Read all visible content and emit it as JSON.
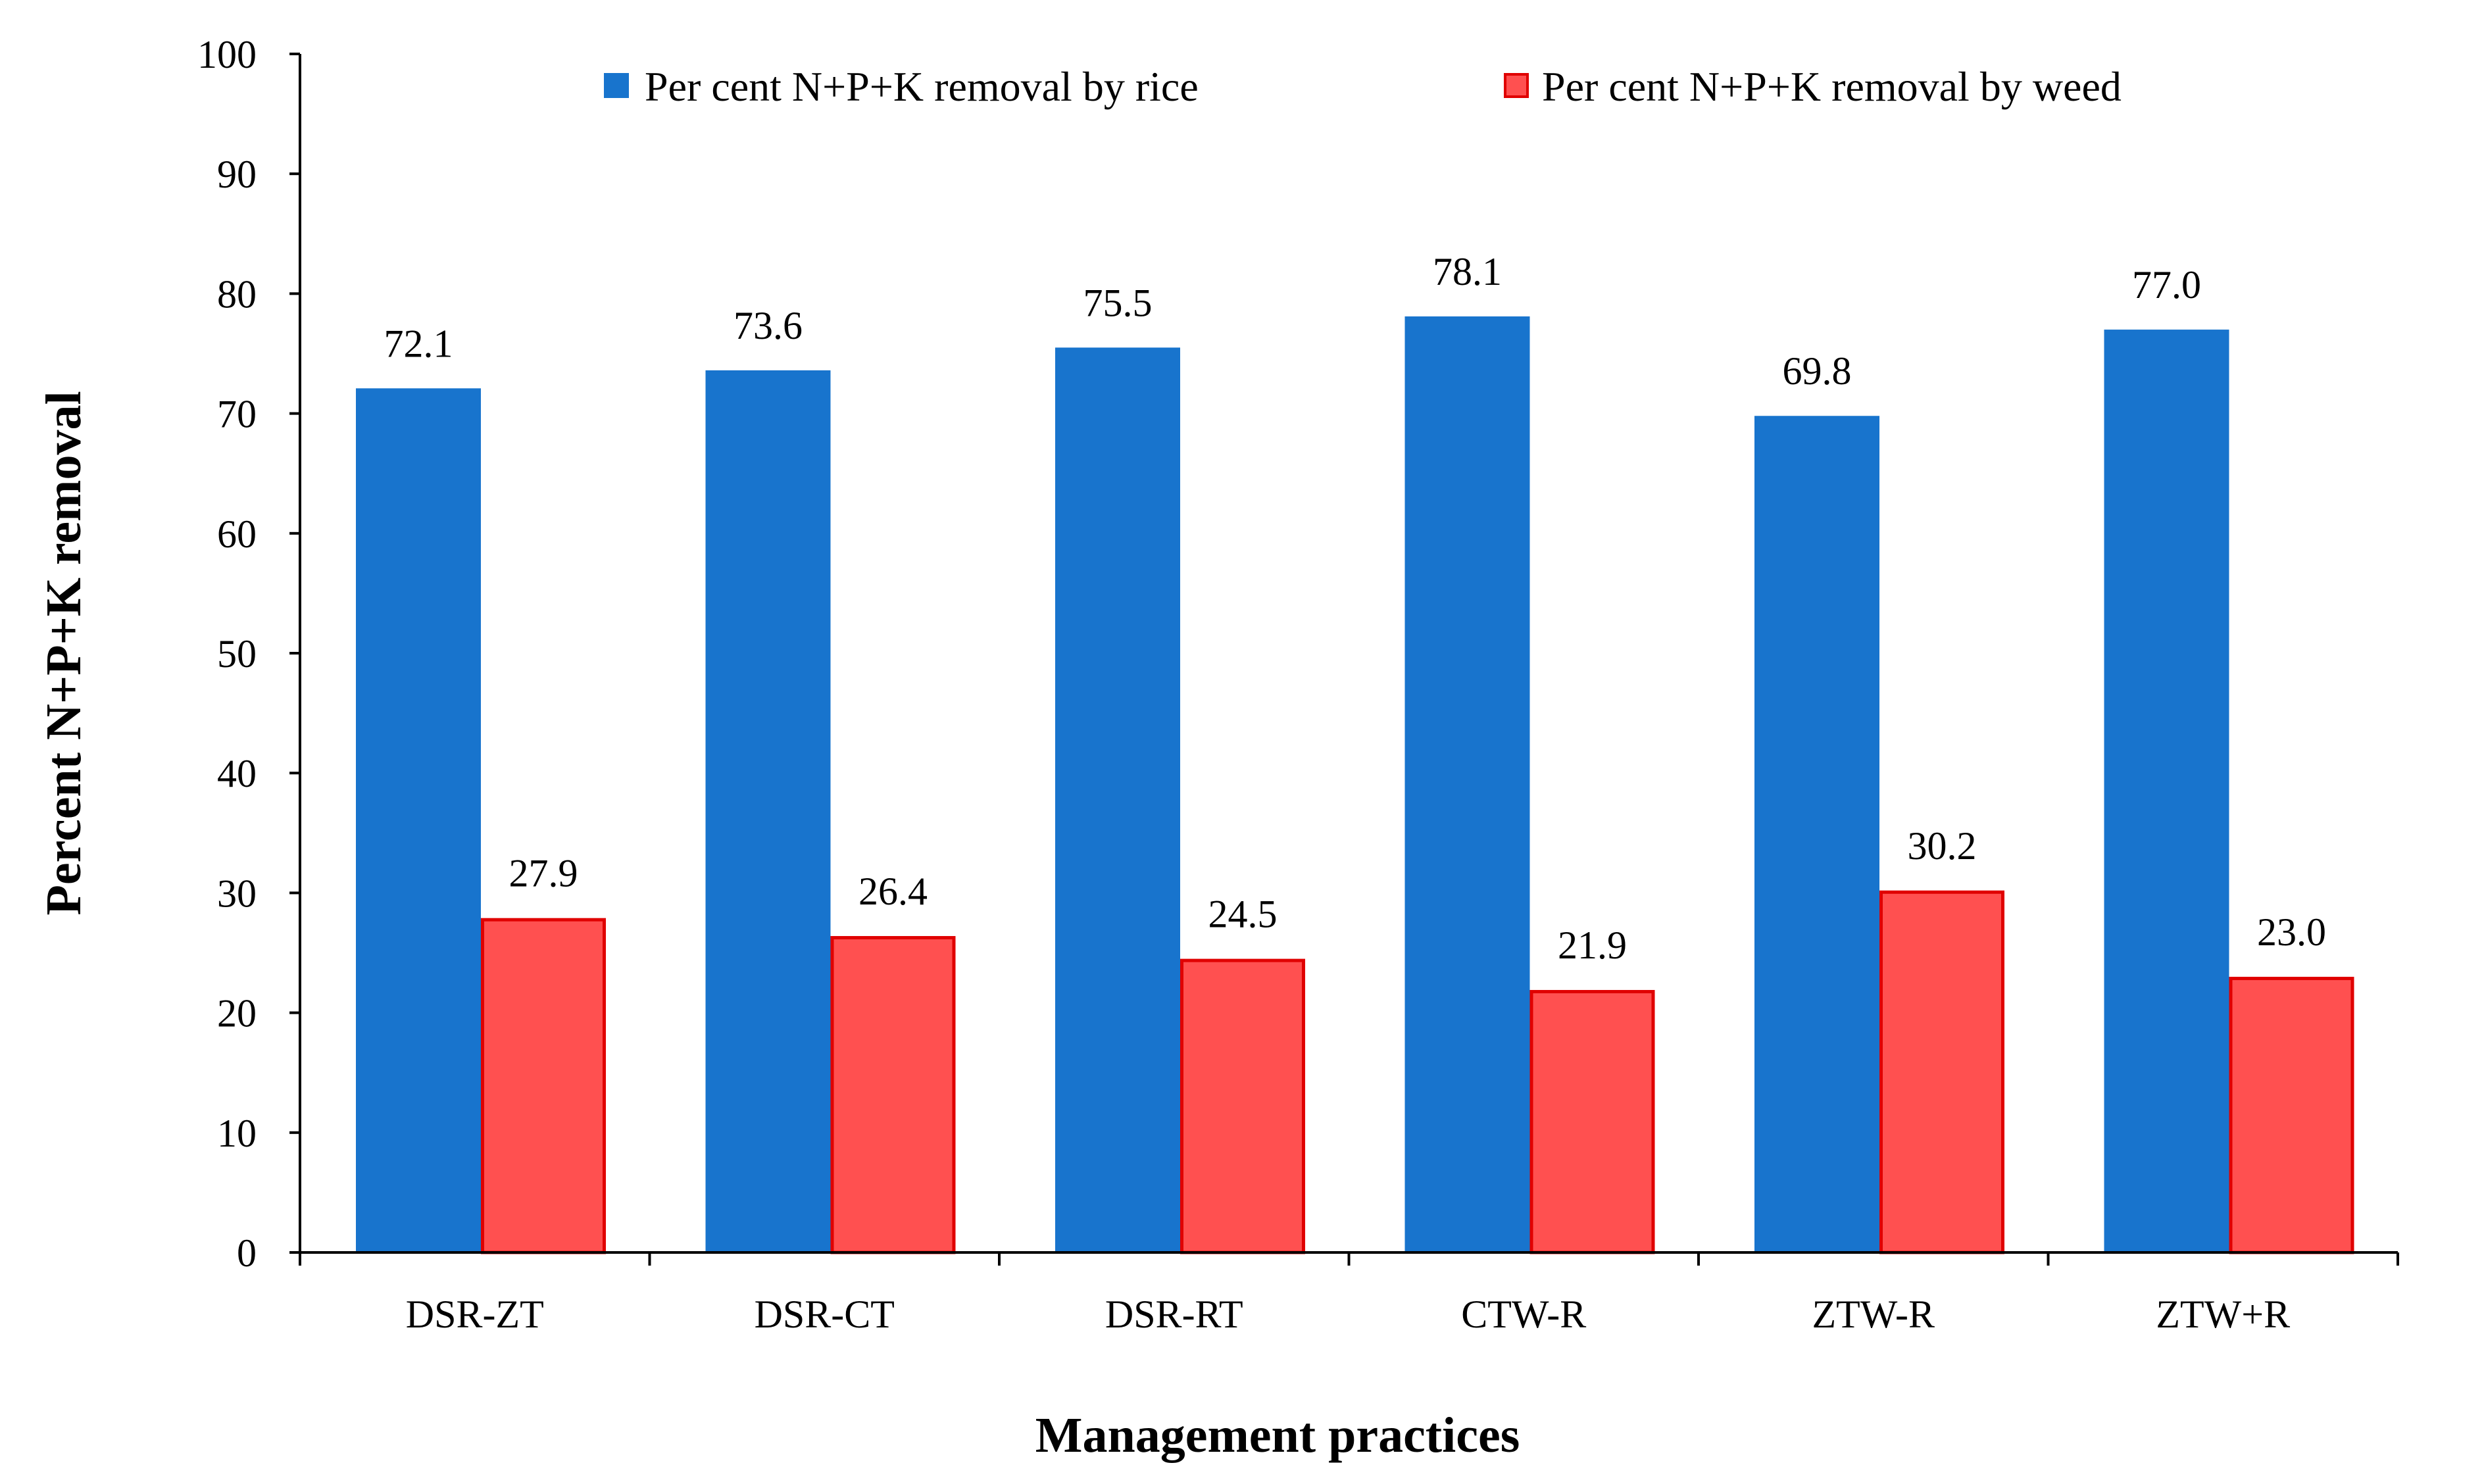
{
  "chart_data": {
    "type": "bar",
    "title": "",
    "xlabel": "Management practices",
    "ylabel": "Percent N+P+K removal",
    "ylim": [
      0,
      100
    ],
    "yticks": [
      0,
      10,
      20,
      30,
      40,
      50,
      60,
      70,
      80,
      90,
      100
    ],
    "grid": false,
    "legend_position": "top-right",
    "categories": [
      "DSR-ZT",
      "DSR-CT",
      "DSR-RT",
      "CTW-R",
      "ZTW-R",
      "ZTW+R"
    ],
    "series": [
      {
        "name": "Per cent N+P+K removal by rice",
        "values": [
          72.1,
          73.6,
          75.5,
          78.1,
          69.8,
          77.0
        ],
        "labels": [
          "72.1",
          "73.6",
          "75.5",
          "78.1",
          "69.8",
          "77.0"
        ],
        "color": "#1874CD",
        "edge_color": "#1874CD"
      },
      {
        "name": "Per cent N+P+K removal by weed",
        "values": [
          27.9,
          26.4,
          24.5,
          21.9,
          30.2,
          23.0
        ],
        "labels": [
          "27.9",
          "26.4",
          "24.5",
          "21.9",
          "30.2",
          "23.0"
        ],
        "color": "#FF5050",
        "edge_color": "#E00000"
      }
    ]
  }
}
